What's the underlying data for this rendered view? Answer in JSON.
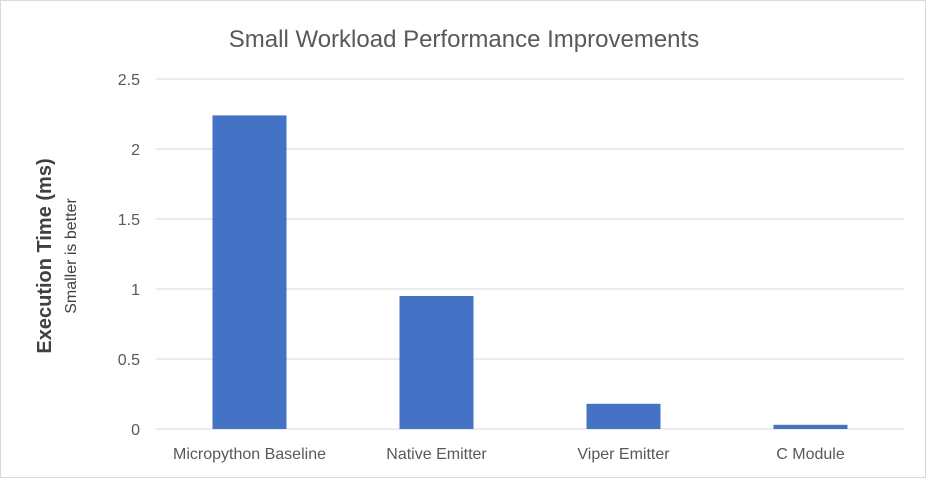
{
  "chart_data": {
    "type": "bar",
    "title": "Small Workload Performance Improvements",
    "ylabel": "Execution Time (ms)",
    "ylabel_sub": "Smaller is better",
    "xlabel": "",
    "categories": [
      "Micropython Baseline",
      "Native Emitter",
      "Viper Emitter",
      "C Module"
    ],
    "values": [
      2.24,
      0.95,
      0.18,
      0.03
    ],
    "ylim": [
      0,
      2.5
    ],
    "yticks": [
      "0",
      "0.5",
      "1",
      "1.5",
      "2",
      "2.5"
    ],
    "ytick_values": [
      0,
      0.5,
      1,
      1.5,
      2,
      2.5
    ],
    "grid": true,
    "legend": "none",
    "bar_color": "#4472c4"
  }
}
